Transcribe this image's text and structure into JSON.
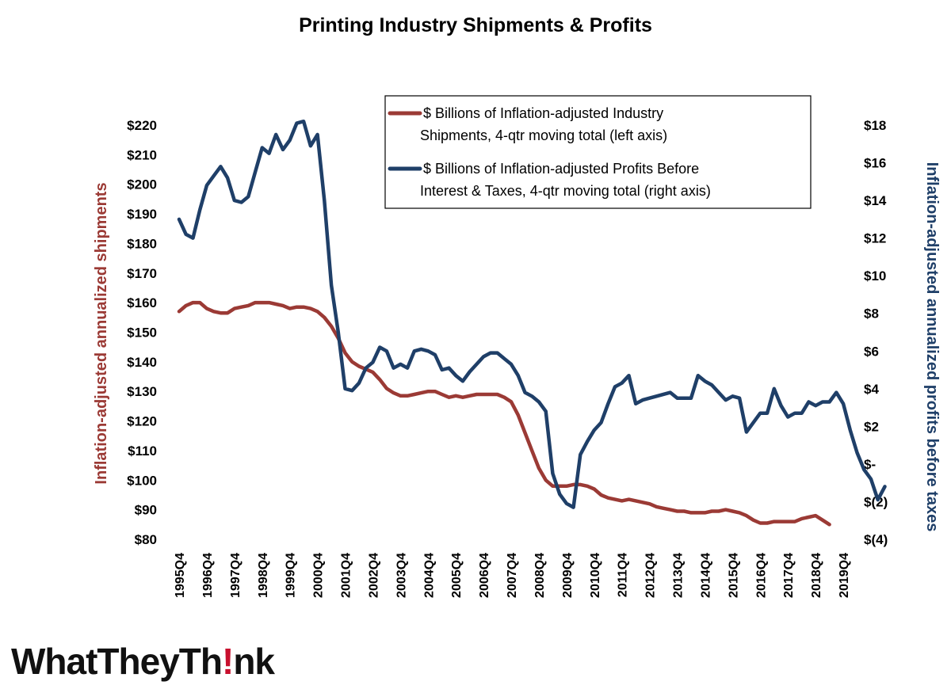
{
  "chart_data": {
    "type": "line",
    "title": "Printing Industry Shipments & Profits",
    "left_axis": {
      "label": "Inflation-adjusted annualized shipments",
      "ylim": [
        80,
        220
      ],
      "ticks": [
        "$80",
        "$90",
        "$100",
        "$110",
        "$120",
        "$130",
        "$140",
        "$150",
        "$160",
        "$170",
        "$180",
        "$190",
        "$200",
        "$210",
        "$220"
      ],
      "color": "#9b3a35"
    },
    "right_axis": {
      "label": "Inflation-adjusted annualized profits before taxes",
      "ylim": [
        -4,
        18
      ],
      "ticks": [
        "$(4)",
        "$(2)",
        "$-",
        "$2",
        "$4",
        "$6",
        "$8",
        "$10",
        "$12",
        "$14",
        "$16",
        "$18"
      ],
      "color": "#1f3f68"
    },
    "x_tick_labels": [
      "1995Q4",
      "1996Q4",
      "1997Q4",
      "1998Q4",
      "1999Q4",
      "2000Q4",
      "2001Q4",
      "2002Q4",
      "2003Q4",
      "2004Q4",
      "2005Q4",
      "2006Q4",
      "2007Q4",
      "2008Q4",
      "2009Q4",
      "2010Q4",
      "2011Q4",
      "2012Q4",
      "2013Q4",
      "2014Q4",
      "2015Q4",
      "2016Q4",
      "2017Q4",
      "2018Q4",
      "2019Q4"
    ],
    "x_start": "1995Q4",
    "legend": {
      "placement": "top-right"
    },
    "series": [
      {
        "name": "$ Billions of Inflation-adjusted Industry Shipments, 4-qtr moving total (left axis)",
        "legend_lines": [
          "$ Billions of Inflation-adjusted Industry",
          "Shipments, 4-qtr moving total (left axis)"
        ],
        "axis": "left",
        "color": "#9b3a35",
        "values": [
          157,
          159,
          160,
          160,
          158,
          157,
          156.5,
          156.5,
          158,
          158.5,
          159,
          160,
          160,
          160,
          159.5,
          159,
          158,
          158.5,
          158.5,
          158,
          157,
          155,
          152,
          148,
          143,
          140,
          138.5,
          137.5,
          136.5,
          134,
          131,
          129.5,
          128.5,
          128.5,
          129,
          129.5,
          130,
          130,
          129,
          128,
          128.5,
          128,
          128.5,
          129,
          129,
          129,
          129,
          128,
          126.5,
          122,
          116,
          110,
          104,
          100,
          98,
          98,
          98,
          98.5,
          98.5,
          98,
          97,
          95,
          94,
          93.5,
          93,
          93.5,
          93,
          92.5,
          92,
          91,
          90.5,
          90,
          89.5,
          89.5,
          89,
          89,
          89,
          89.5,
          89.5,
          90,
          89.5,
          89,
          88,
          86.5,
          85.5,
          85.5,
          86,
          86,
          86,
          86,
          87,
          87.5,
          88,
          86.5,
          85
        ]
      },
      {
        "name": "$ Billions of Inflation-adjusted Profits Before Interest & Taxes, 4-qtr moving total (right axis)",
        "legend_lines": [
          "$ Billions of Inflation-adjusted Profits Before",
          "Interest & Taxes, 4-qtr moving total (right axis)"
        ],
        "axis": "right",
        "color": "#1f3f68",
        "values": [
          13,
          12.2,
          12,
          13.5,
          14.8,
          15.3,
          15.8,
          15.2,
          14,
          13.9,
          14.2,
          15.5,
          16.8,
          16.5,
          17.5,
          16.7,
          17.2,
          18.1,
          18.2,
          16.9,
          17.5,
          14,
          9.5,
          7,
          4,
          3.9,
          4.3,
          5.1,
          5.4,
          6.2,
          6,
          5.1,
          5.3,
          5.1,
          6,
          6.1,
          6,
          5.8,
          5,
          5.1,
          4.7,
          4.4,
          4.9,
          5.3,
          5.7,
          5.9,
          5.9,
          5.6,
          5.3,
          4.7,
          3.8,
          3.6,
          3.3,
          2.8,
          -0.5,
          -1.6,
          -2.1,
          -2.3,
          0.5,
          1.2,
          1.8,
          2.2,
          3.2,
          4.1,
          4.3,
          4.7,
          3.2,
          3.4,
          3.5,
          3.6,
          3.7,
          3.8,
          3.5,
          3.5,
          3.5,
          4.7,
          4.4,
          4.2,
          3.8,
          3.4,
          3.6,
          3.5,
          1.7,
          2.2,
          2.7,
          2.7,
          4,
          3.1,
          2.5,
          2.7,
          2.7,
          3.3,
          3.1,
          3.3,
          3.3,
          3.8,
          3.2,
          1.8,
          0.6,
          -0.3,
          -0.8,
          -1.9,
          -1.2
        ]
      }
    ]
  },
  "logo": {
    "text_before": "WhatTheyTh",
    "text_mark": "!",
    "text_after": "nk"
  }
}
